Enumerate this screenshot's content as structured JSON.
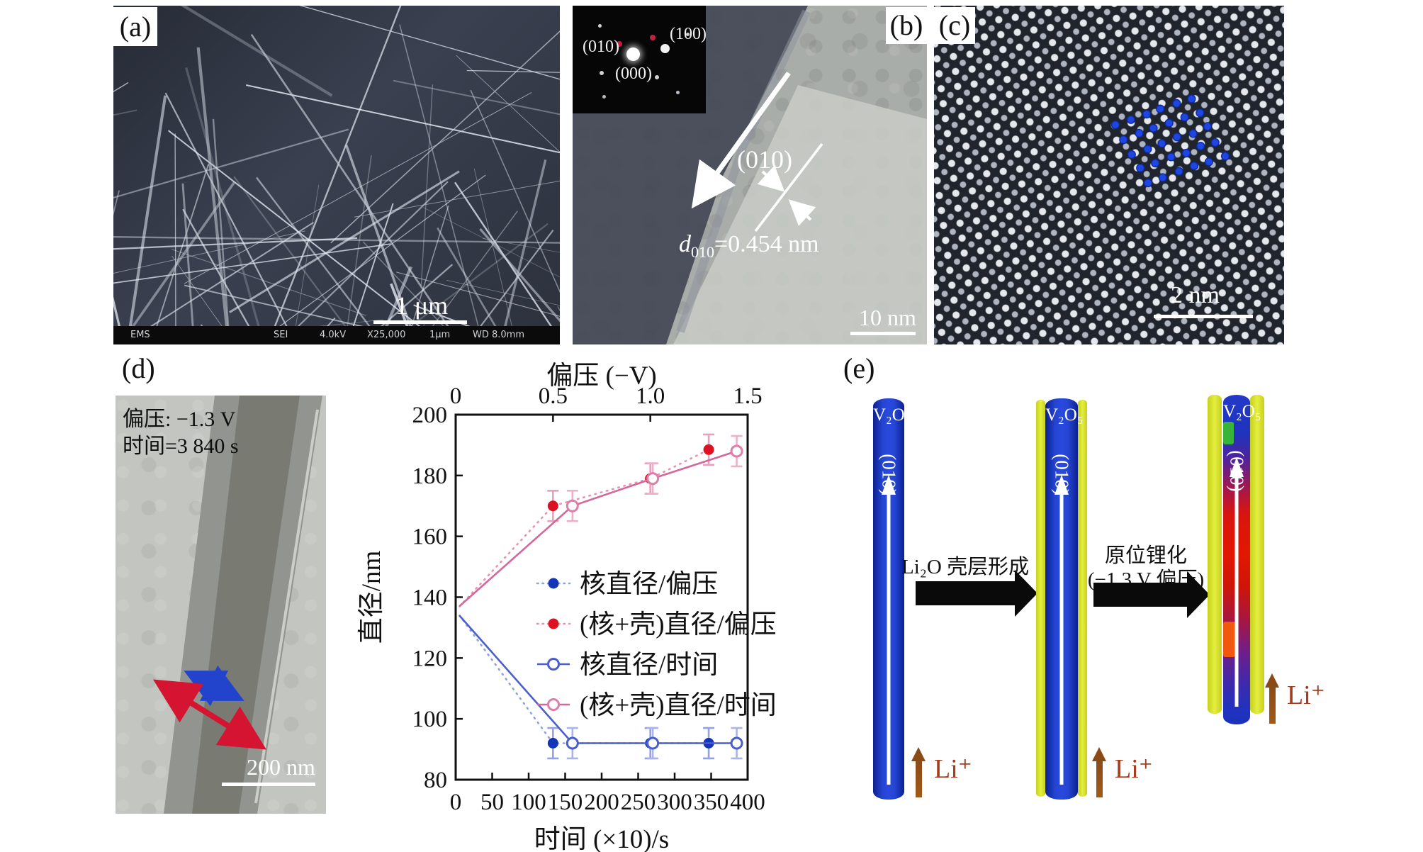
{
  "panels": {
    "a": {
      "label": "(a)",
      "scale_text": "1 μm",
      "info_bar": [
        "EMS",
        "SEI",
        "4.0kV",
        "X25,000",
        "1μm",
        "WD 8.0mm"
      ]
    },
    "b": {
      "label": "(b)",
      "inset": {
        "spot_labels": [
          "(010)",
          "(100)",
          "(000)"
        ]
      },
      "plane_label": "(010)",
      "d_spacing": {
        "symbol": "d",
        "sub": "010",
        "value": "=0.454 nm"
      },
      "scale_text": "10 nm"
    },
    "c": {
      "label": "(c)",
      "scale_text": "2 nm"
    },
    "d": {
      "label": "(d)",
      "bias_text": "偏压: −1.3 V",
      "time_text": "时间=3 840 s",
      "scale_text": "200 nm"
    },
    "e": {
      "label": "(e)",
      "cylinders": [
        {
          "material": "V₂O₅",
          "plane": "(010)"
        },
        {
          "material": "V₂O₅",
          "plane": "(010)"
        },
        {
          "material": "V₂O₅",
          "plane": "(010)"
        }
      ],
      "step1_label": "Li₂O 壳层形成",
      "step2_label_line1": "原位锂化",
      "step2_label_line2": "(−1.3 V 偏压)",
      "ion_label": "Li⁺",
      "colors": {
        "core_blue": "#1f35c3",
        "shell_yellow": "#d9e42c",
        "lithiated_red": "#e31700",
        "ion_arrow_brown": "#8a4a15"
      }
    }
  },
  "chart_data": {
    "type": "scatter",
    "top_axis": {
      "label": "偏压 (−V)",
      "lim": [
        0,
        1.5
      ],
      "tick_values": [
        0,
        0.5,
        1.0,
        1.5
      ],
      "tick_labels": [
        "0",
        "0.5",
        "1.0",
        "1.5"
      ]
    },
    "bottom_axis": {
      "label": "时间 (×10)/s",
      "lim": [
        0,
        400
      ],
      "tick_values": [
        0,
        50,
        100,
        150,
        200,
        250,
        300,
        350,
        400
      ]
    },
    "y_axis": {
      "label": "直径/nm",
      "lim": [
        80,
        200
      ],
      "tick_values": [
        80,
        100,
        120,
        140,
        160,
        180,
        200
      ]
    },
    "grid": false,
    "legend_position": "inside-center-left",
    "series": [
      {
        "name": "核直径/偏压",
        "x_axis": "top",
        "line": "dotted",
        "marker": "filled",
        "color": "#1535b8",
        "line_color": "#8fa0dd",
        "err_color": "#93a2e0",
        "yerr": 5,
        "points": [
          [
            0.02,
            134
          ],
          [
            0.5,
            92
          ],
          [
            1.0,
            92
          ],
          [
            1.3,
            92
          ]
        ]
      },
      {
        "name": "(核+壳)直径/偏压",
        "x_axis": "top",
        "line": "dotted",
        "marker": "filled",
        "color": "#dd1122",
        "line_color": "#e792b4",
        "err_color": "#e9a0bd",
        "yerr": 5,
        "points": [
          [
            0.02,
            137
          ],
          [
            0.5,
            170
          ],
          [
            1.0,
            179
          ],
          [
            1.3,
            188.5
          ]
        ]
      },
      {
        "name": "核直径/时间",
        "x_axis": "bottom",
        "line": "solid",
        "marker": "open",
        "color": "#4a5ecc",
        "line_color": "#4a5ecc",
        "err_color": "#aab4e8",
        "yerr": 5,
        "points": [
          [
            5,
            134
          ],
          [
            160,
            92
          ],
          [
            270,
            92
          ],
          [
            385,
            92
          ]
        ]
      },
      {
        "name": "(核+壳)直径/时间",
        "x_axis": "bottom",
        "line": "solid",
        "marker": "open",
        "color": "#dd7fa8",
        "line_color": "#d4689a",
        "err_color": "#ecb0c8",
        "yerr": 5,
        "points": [
          [
            5,
            137
          ],
          [
            160,
            170
          ],
          [
            270,
            179
          ],
          [
            385,
            188
          ]
        ]
      }
    ]
  }
}
